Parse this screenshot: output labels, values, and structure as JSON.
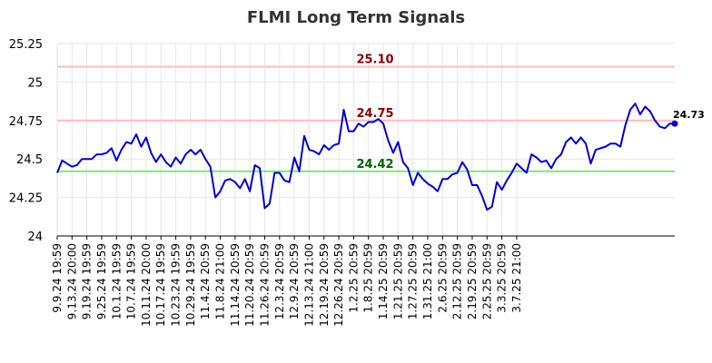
{
  "chart_data": {
    "type": "line",
    "title": "FLMI Long Term Signals",
    "ylim": [
      24,
      25.25
    ],
    "y_ticks": [
      "24",
      "24.25",
      "24.5",
      "24.75",
      "25",
      "25.25"
    ],
    "y_tick_values": [
      24,
      24.25,
      24.5,
      24.75,
      25,
      25.25
    ],
    "x_tick_labels": [
      "9.9.24 19:59",
      "9.13.24 20:00",
      "9.19.24 19:59",
      "9.25.24 19:59",
      "10.1.24 19:59",
      "10.7.24 19:59",
      "10.11.24 20:00",
      "10.17.24 19:59",
      "10.23.24 19:59",
      "10.29.24 19:59",
      "11.4.24 20:59",
      "11.8.24 21:00",
      "11.14.24 20:59",
      "11.20.24 20:59",
      "11.26.24 20:59",
      "12.3.24 20:59",
      "12.9.24 20:59",
      "12.13.24 21:00",
      "12.19.24 20:59",
      "12.26.24 20:59",
      "1.2.25 20:59",
      "1.8.25 20:59",
      "1.14.25 20:59",
      "1.21.25 20:59",
      "1.27.25 20:59",
      "1.31.25 21:00",
      "2.6.25 20:59",
      "2.12.25 20:59",
      "2.19.25 20:59",
      "2.25.25 20:59",
      "3.3.25 20:59",
      "3.7.25 21:00"
    ],
    "x_tick_indices": [
      0,
      3,
      6,
      9,
      12,
      15,
      18,
      21,
      24,
      27,
      30,
      33,
      36,
      39,
      42,
      45,
      48,
      51,
      54,
      57,
      60,
      63,
      66,
      69,
      72,
      75,
      78,
      81,
      84,
      87,
      90,
      93
    ],
    "grid": true,
    "series": [
      {
        "color": "#0000cc",
        "values": [
          24.41,
          24.49,
          24.47,
          24.45,
          24.46,
          24.5,
          24.5,
          24.5,
          24.53,
          24.53,
          24.54,
          24.57,
          24.49,
          24.56,
          24.61,
          24.6,
          24.66,
          24.58,
          24.64,
          24.54,
          24.48,
          24.53,
          24.48,
          24.45,
          24.51,
          24.47,
          24.53,
          24.56,
          24.53,
          24.56,
          24.5,
          24.45,
          24.25,
          24.29,
          24.36,
          24.37,
          24.35,
          24.31,
          24.37,
          24.29,
          24.46,
          24.44,
          24.18,
          24.21,
          24.41,
          24.41,
          24.36,
          24.35,
          24.51,
          24.42,
          24.65,
          24.56,
          24.55,
          24.53,
          24.59,
          24.56,
          24.59,
          24.6,
          24.82,
          24.68,
          24.68,
          24.73,
          24.71,
          24.74,
          24.74,
          24.76,
          24.73,
          24.62,
          24.54,
          24.61,
          24.48,
          24.44,
          24.33,
          24.41,
          24.37,
          24.34,
          24.32,
          24.29,
          24.37,
          24.37,
          24.4,
          24.41,
          24.48,
          24.43,
          24.33,
          24.33,
          24.26,
          24.17,
          24.19,
          24.35,
          24.3,
          24.36,
          24.41,
          24.47,
          24.44,
          24.41,
          24.53,
          24.51,
          24.48,
          24.49,
          24.44,
          24.5,
          24.53,
          24.61,
          24.64,
          24.6,
          24.64,
          24.6,
          24.47,
          24.56,
          24.57,
          24.58,
          24.6,
          24.6,
          24.58,
          24.72,
          24.82,
          24.86,
          24.79,
          24.84,
          24.81,
          24.75,
          24.71,
          24.7,
          24.73,
          24.73
        ]
      }
    ],
    "reference_lines": [
      {
        "label": "25.10",
        "value": 25.1,
        "line_color": "#ffbbbb",
        "text_color": "#8b0000"
      },
      {
        "label": "24.75",
        "value": 24.75,
        "line_color": "#ffbbbb",
        "text_color": "#8b0000"
      },
      {
        "label": "24.42",
        "value": 24.42,
        "line_color": "#88dd88",
        "text_color": "#006400"
      }
    ],
    "last_value_label": "24.73"
  }
}
